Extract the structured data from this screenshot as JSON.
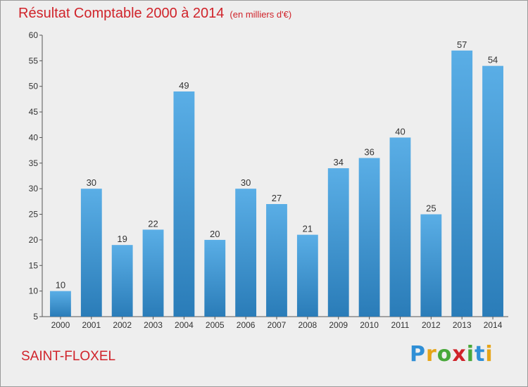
{
  "title": "Résultat Comptable 2000 à 2014",
  "subtitle": "(en milliers d'€)",
  "commune": "SAINT-FLOXEL",
  "logo": {
    "letters": [
      "P",
      "r",
      "o",
      "x",
      "i",
      "t",
      "i"
    ],
    "colors": [
      "#2f8fd6",
      "#e6a519",
      "#48a83a",
      "#d0232a",
      "#48a83a",
      "#2f8fd6",
      "#e6a519"
    ]
  },
  "colors": {
    "bar_top": "#5aaee6",
    "bar_bottom": "#2a7cb8",
    "title": "#d0232a"
  },
  "chart_data": {
    "type": "bar",
    "categories": [
      "2000",
      "2001",
      "2002",
      "2003",
      "2004",
      "2005",
      "2006",
      "2007",
      "2008",
      "2009",
      "2010",
      "2011",
      "2012",
      "2013",
      "2014"
    ],
    "values": [
      10,
      30,
      19,
      22,
      49,
      20,
      30,
      27,
      21,
      34,
      36,
      40,
      25,
      57,
      54
    ],
    "ylim": [
      5,
      60
    ],
    "yticks": [
      5,
      10,
      15,
      20,
      25,
      30,
      35,
      40,
      45,
      50,
      55,
      60
    ],
    "grid": false
  }
}
